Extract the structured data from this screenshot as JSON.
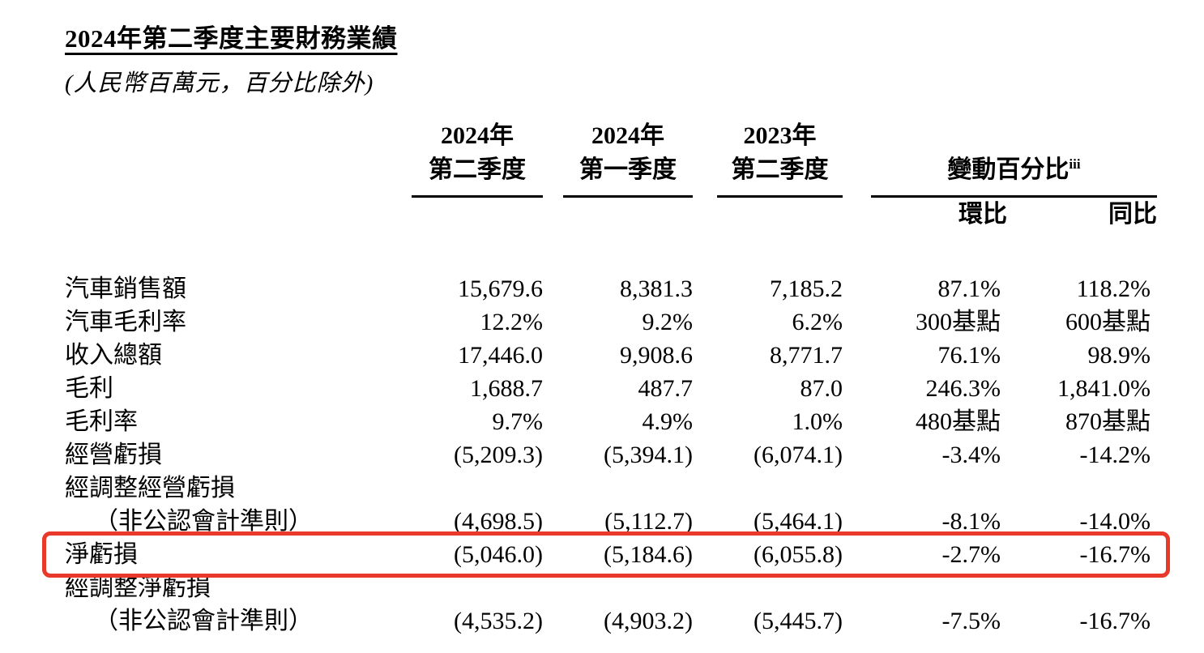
{
  "title": "2024年第二季度主要財務業績",
  "subtitle": "(人民幣百萬元，百分比除外)",
  "table": {
    "period_headers": [
      {
        "line1": "2024年",
        "line2": "第二季度"
      },
      {
        "line1": "2024年",
        "line2": "第一季度"
      },
      {
        "line1": "2023年",
        "line2": "第二季度"
      }
    ],
    "change_header": {
      "label": "變動百分比",
      "superscript": "iii",
      "subcolumns": [
        "環比",
        "同比"
      ]
    },
    "rows": [
      {
        "label": "汽車銷售額",
        "values": [
          "15,679.6",
          "8,381.3",
          "7,185.2",
          "87.1%",
          "118.2%"
        ]
      },
      {
        "label": "汽車毛利率",
        "values": [
          "12.2%",
          "9.2%",
          "6.2%",
          "300基點",
          "600基點"
        ]
      },
      {
        "label": "收入總額",
        "values": [
          "17,446.0",
          "9,908.6",
          "8,771.7",
          "76.1%",
          "98.9%"
        ]
      },
      {
        "label": "毛利",
        "values": [
          "1,688.7",
          "487.7",
          "87.0",
          "246.3%",
          "1,841.0%"
        ]
      },
      {
        "label": "毛利率",
        "values": [
          "9.7%",
          "4.9%",
          "1.0%",
          "480基點",
          "870基點"
        ]
      },
      {
        "label": "經營虧損",
        "values": [
          "(5,209.3)",
          "(5,394.1)",
          "(6,074.1)",
          "-3.4%",
          "-14.2%"
        ]
      },
      {
        "label": "經調整經營虧損",
        "values": [
          "",
          "",
          "",
          "",
          ""
        ]
      },
      {
        "label": "（非公認會計準則）",
        "values": [
          "(4,698.5)",
          "(5,112.7)",
          "(5,464.1)",
          "-8.1%",
          "-14.0%"
        ]
      },
      {
        "label": "淨虧損",
        "values": [
          "(5,046.0)",
          "(5,184.6)",
          "(6,055.8)",
          "-2.7%",
          "-16.7%"
        ]
      },
      {
        "label": "經調整淨虧損",
        "values": [
          "",
          "",
          "",
          "",
          ""
        ]
      },
      {
        "label": "（非公認會計準則）",
        "values": [
          "(4,535.2)",
          "(4,903.2)",
          "(5,445.7)",
          "-7.5%",
          "-16.7%"
        ]
      }
    ],
    "highlighted_row_label": "淨虧損"
  },
  "highlight": {
    "color": "#e8392b"
  }
}
